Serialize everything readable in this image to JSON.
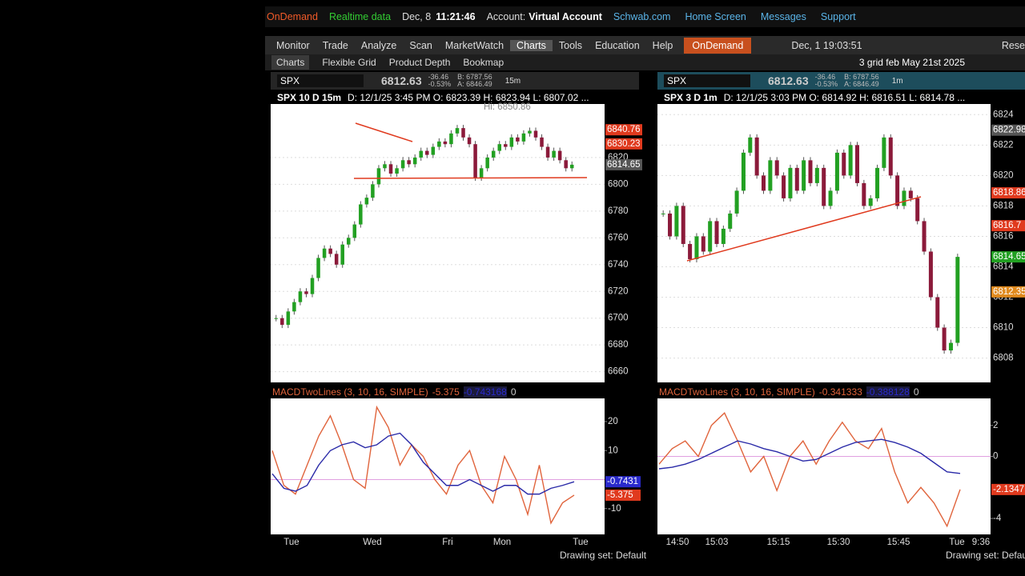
{
  "top_bar": {
    "ondemand": "OnDemand",
    "realtime": "Realtime data",
    "date": "Dec, 8",
    "time": "11:21:46",
    "account_label": "Account:",
    "account": "Virtual Account",
    "links": [
      "Schwab.com",
      "Home Screen",
      "Messages",
      "Support"
    ]
  },
  "menu": {
    "tabs": [
      "Monitor",
      "Trade",
      "Analyze",
      "Scan",
      "MarketWatch",
      "Charts",
      "Tools",
      "Education",
      "Help"
    ],
    "ondemand": "OnDemand",
    "replay_time": "Dec, 1 19:03:51",
    "reset": "Rese"
  },
  "toolbar": {
    "tabs": [
      "Charts",
      "Flexible Grid",
      "Product Depth",
      "Bookmap"
    ],
    "grid_name": "3 grid feb May 21st 2025"
  },
  "charts": [
    {
      "symbol": "SPX",
      "last": "6812.63",
      "change": "-36.46",
      "change_pct": "-0.53%",
      "bid": "B: 6787.56",
      "ask": "A: 6846.49",
      "period": "15m",
      "title": "SPX 10 D 15m",
      "info": "D: 12/1/25 3:45 PM  O: 6823.39  H: 6823.94  L: 6807.02 ...",
      "high_label": "Hi: 6850.86",
      "price": {
        "type": "candlestick",
        "ylim": [
          6652,
          6860
        ],
        "yticks": [
          6660,
          6680,
          6700,
          6720,
          6740,
          6760,
          6780,
          6800,
          6820
        ],
        "grid": true,
        "up_color": "#22a022",
        "down_color": "#8b1a3a",
        "closes": [
          6700,
          6695,
          6705,
          6712,
          6720,
          6718,
          6730,
          6745,
          6752,
          6748,
          6740,
          6755,
          6760,
          6770,
          6785,
          6790,
          6800,
          6812,
          6815,
          6808,
          6812,
          6818,
          6815,
          6820,
          6825,
          6822,
          6828,
          6832,
          6830,
          6838,
          6842,
          6835,
          6830,
          6805,
          6812,
          6820,
          6825,
          6830,
          6828,
          6835,
          6832,
          6838,
          6840,
          6835,
          6828,
          6820,
          6825,
          6818,
          6812,
          6814.65
        ],
        "price_tags": [
          {
            "value": 6840.76,
            "color": "#e03a1e"
          },
          {
            "value": 6830.23,
            "color": "#e03a1e"
          },
          {
            "value": 6814.65,
            "color": "#555555"
          }
        ],
        "x_labels": [
          "Tue",
          "Wed",
          "Fri",
          "Mon",
          "Tue"
        ]
      },
      "macd": {
        "type": "line",
        "label": "MACDTwoLines (3, 10, 16, SIMPLE)",
        "value": -5.375,
        "avg_value": -0.743168,
        "diff": 0,
        "ylim": [
          -18.9,
          28
        ],
        "yticks": [
          -10,
          10,
          20
        ],
        "series": [
          {
            "color": "#e0643c",
            "values": [
              10,
              -2,
              -5,
              5,
              15,
              22,
              12,
              0,
              -3,
              25,
              18,
              5,
              12,
              8,
              0,
              -5,
              5,
              10,
              -2,
              -8,
              8,
              0,
              -12,
              5,
              -15,
              -8,
              -5.375
            ]
          },
          {
            "color": "#2a2aa8",
            "values": [
              2,
              -3,
              -4,
              -2,
              5,
              10,
              12,
              13,
              11,
              12,
              15,
              16,
              12,
              6,
              2,
              -2,
              -2,
              0,
              -2,
              -4,
              -2,
              -2,
              -5,
              -5,
              -3,
              -2,
              -0.7431
            ]
          }
        ],
        "tags": [
          {
            "value": -0.7431,
            "color": "#2a2acc"
          },
          {
            "value": -5.375,
            "color": "#e03a1e"
          }
        ]
      }
    },
    {
      "symbol": "SPX",
      "last": "6812.63",
      "change": "-36.46",
      "change_pct": "-0.53%",
      "bid": "B: 6787.56",
      "ask": "A: 6846.49",
      "period": "1m",
      "title": "SPX 3 D 1m",
      "info": "D: 12/1/25 3:03 PM  O: 6814.92  H: 6816.51  L: 6814.78 ...",
      "price": {
        "type": "candlestick",
        "ylim": [
          6806.4,
          6824.7
        ],
        "yticks": [
          6808,
          6810,
          6812,
          6814,
          6816,
          6818,
          6820,
          6822,
          6824
        ],
        "grid": true,
        "up_color": "#22a022",
        "down_color": "#8b1a3a",
        "closes": [
          6817.5,
          6816,
          6818,
          6815.5,
          6814.5,
          6816,
          6815,
          6817,
          6815.5,
          6816.5,
          6817.5,
          6819,
          6821.5,
          6822.5,
          6820,
          6819,
          6821,
          6820,
          6818.5,
          6820.5,
          6819,
          6821,
          6819.5,
          6820.5,
          6818,
          6819,
          6821.5,
          6820,
          6822,
          6819.5,
          6818,
          6818.5,
          6820.5,
          6822.5,
          6820,
          6818,
          6819,
          6818.5,
          6817,
          6815,
          6812,
          6810,
          6808.5,
          6809,
          6814.65
        ],
        "price_tags": [
          {
            "value": 6822.98,
            "color": "#555555"
          },
          {
            "value": 6818.86,
            "color": "#e03a1e"
          },
          {
            "value": 6816.7,
            "color": "#e03a1e"
          },
          {
            "value": 6814.65,
            "color": "#22a022"
          },
          {
            "value": 6812.35,
            "color": "#e08a1e"
          }
        ],
        "x_labels": [
          "14:50",
          "15:03",
          "15:15",
          "15:30",
          "15:45",
          "Tue",
          "9:36"
        ]
      },
      "macd": {
        "type": "line",
        "label": "MACDTwoLines (3, 10, 16, SIMPLE)",
        "value": -0.341333,
        "avg_value": -0.388128,
        "diff": 0,
        "ylim": [
          -5.03,
          3.74
        ],
        "yticks": [
          -4,
          0,
          2
        ],
        "series": [
          {
            "color": "#e0643c",
            "values": [
              -0.5,
              0.5,
              1,
              0,
              2,
              2.8,
              1,
              -1,
              0,
              -2.2,
              0,
              1,
              -0.5,
              1,
              2.2,
              1,
              0.5,
              1.8,
              -1,
              -3,
              -2,
              -3,
              -4.5,
              -2.1347
            ]
          },
          {
            "color": "#2a2aa8",
            "values": [
              -0.8,
              -0.7,
              -0.5,
              -0.2,
              0.2,
              0.6,
              1,
              0.8,
              0.5,
              0.3,
              0,
              -0.3,
              -0.2,
              0.2,
              0.6,
              0.9,
              1,
              1.1,
              0.9,
              0.6,
              0.2,
              -0.4,
              -1,
              -1.1
            ]
          }
        ],
        "tags": [
          {
            "value": -2.1347,
            "color": "#e03a1e"
          }
        ]
      }
    }
  ],
  "footer": {
    "drawing_set": "Drawing set: Default"
  }
}
